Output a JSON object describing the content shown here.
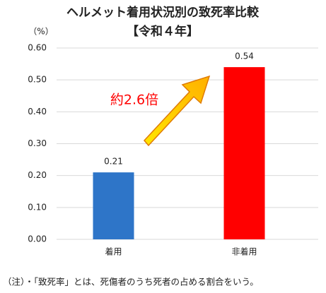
{
  "chart_data": {
    "type": "bar",
    "title": "ヘルメット着用状況別の致死率比較",
    "subtitle": "【令和４年】",
    "y_unit": "（%）",
    "categories": [
      "着用",
      "非着用"
    ],
    "values": [
      0.21,
      0.54
    ],
    "colors": [
      "#2e75c8",
      "#ff0000"
    ],
    "ylim": [
      0,
      0.6
    ],
    "yticks": [
      {
        "value": 0,
        "label": "0.00"
      },
      {
        "value": 0.1,
        "label": "0.10"
      },
      {
        "value": 0.2,
        "label": "0.20"
      },
      {
        "value": 0.3,
        "label": "0.30"
      },
      {
        "value": 0.4,
        "label": "0.40"
      },
      {
        "value": 0.5,
        "label": "0.50"
      },
      {
        "value": 0.6,
        "label": "0.60"
      }
    ],
    "grid": true,
    "annotation": "約2.6倍",
    "note": "（注）・「致死率」とは、死傷者のうち死者の占める割合をいう。"
  }
}
